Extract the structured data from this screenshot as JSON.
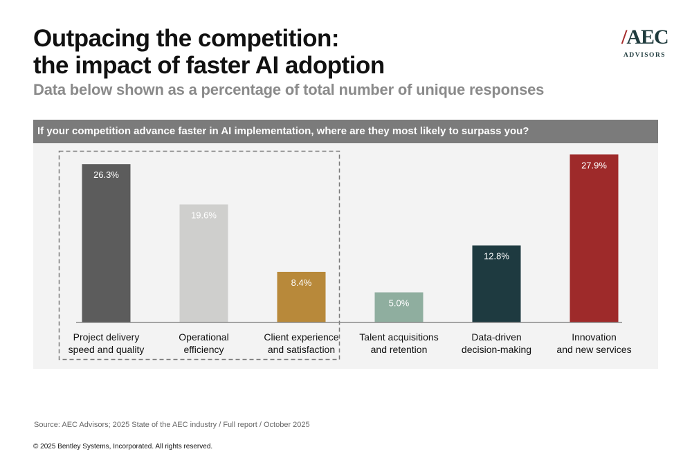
{
  "header": {
    "title_line1": "Outpacing the competition:",
    "title_line2": "the impact of faster AI adoption",
    "subtitle": "Data below shown as a percentage of total number of unique responses"
  },
  "logo": {
    "mark": "AEC",
    "slash": "/",
    "sub": "ADVISORS"
  },
  "chart_data": {
    "type": "bar",
    "title": "If your competition advance faster in AI implementation, where are they most likely to surpass you?",
    "unit": "%",
    "categories": [
      [
        "Project delivery",
        "speed and quality"
      ],
      [
        "Operational",
        "efficiency"
      ],
      [
        "Client experience",
        "and satisfaction"
      ],
      [
        "Talent acquisitions",
        "and retention"
      ],
      [
        "Data-driven",
        "decision-making"
      ],
      [
        "Innovation",
        "and new services"
      ]
    ],
    "values": [
      26.3,
      19.6,
      8.4,
      5.0,
      12.8,
      27.9
    ],
    "labels": [
      "26.3%",
      "19.6%",
      "8.4%",
      "5.0%",
      "12.8%",
      "27.9%"
    ],
    "colors": [
      "#5c5c5c",
      "#cfcfcd",
      "#b8893a",
      "#8fae9f",
      "#1e3a40",
      "#9e2a2a"
    ],
    "highlight": "dashed box around first three categories",
    "ylim": [
      0,
      30
    ]
  },
  "footer": {
    "source": "Source: AEC Advisors; 2025 State of the AEC industry / Full report / October 2025",
    "copyright": "© 2025 Bentley Systems, Incorporated. All rights reserved."
  }
}
